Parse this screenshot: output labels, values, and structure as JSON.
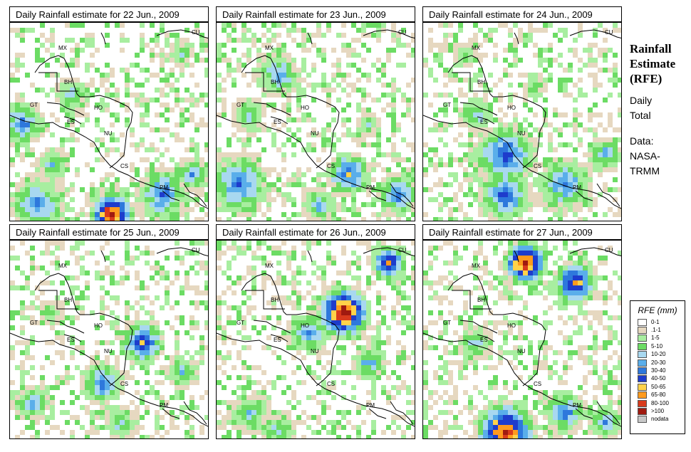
{
  "panels": [
    {
      "title": "Daily Rainfall estimate for  22 Jun., 2009",
      "scene": 0
    },
    {
      "title": "Daily Rainfall estimate for  23 Jun., 2009",
      "scene": 1
    },
    {
      "title": "Daily Rainfall estimate for  24 Jun., 2009",
      "scene": 2
    },
    {
      "title": "Daily Rainfall estimate for  25 Jun., 2009",
      "scene": 3
    },
    {
      "title": "Daily Rainfall estimate for  26 Jun., 2009",
      "scene": 4
    },
    {
      "title": "Daily Rainfall estimate for  27 Jun., 2009",
      "scene": 5
    }
  ],
  "country_labels": [
    "MX",
    "BH",
    "GT",
    "HO",
    "ES",
    "NU",
    "CS",
    "PM",
    "CU"
  ],
  "side": {
    "title_line1": "Rainfall",
    "title_line2": "Estimate",
    "title_line3": "(RFE)",
    "daily_line1": "Daily",
    "daily_line2": "Total",
    "data_line1": "Data:",
    "data_line2": "NASA-",
    "data_line3": "TRMM"
  },
  "legend": {
    "title": "RFE (mm)",
    "items": [
      {
        "label": "0-1",
        "color": "#ffffff"
      },
      {
        "label": ".1-1",
        "color": "#e6d8c0"
      },
      {
        "label": "1-5",
        "color": "#a8eea0"
      },
      {
        "label": "5-10",
        "color": "#6cdc64"
      },
      {
        "label": "10-20",
        "color": "#a8d8f0"
      },
      {
        "label": "20-30",
        "color": "#5aaeea"
      },
      {
        "label": "30-40",
        "color": "#2e78dc"
      },
      {
        "label": "40-50",
        "color": "#1e3ccc"
      },
      {
        "label": "50-65",
        "color": "#ffd24a"
      },
      {
        "label": "65-80",
        "color": "#ff9a1e"
      },
      {
        "label": "80-100",
        "color": "#d83a1c"
      },
      {
        "label": ">100",
        "color": "#a01a10"
      },
      {
        "label": "nodata",
        "color": "#c8c8c8"
      }
    ]
  }
}
